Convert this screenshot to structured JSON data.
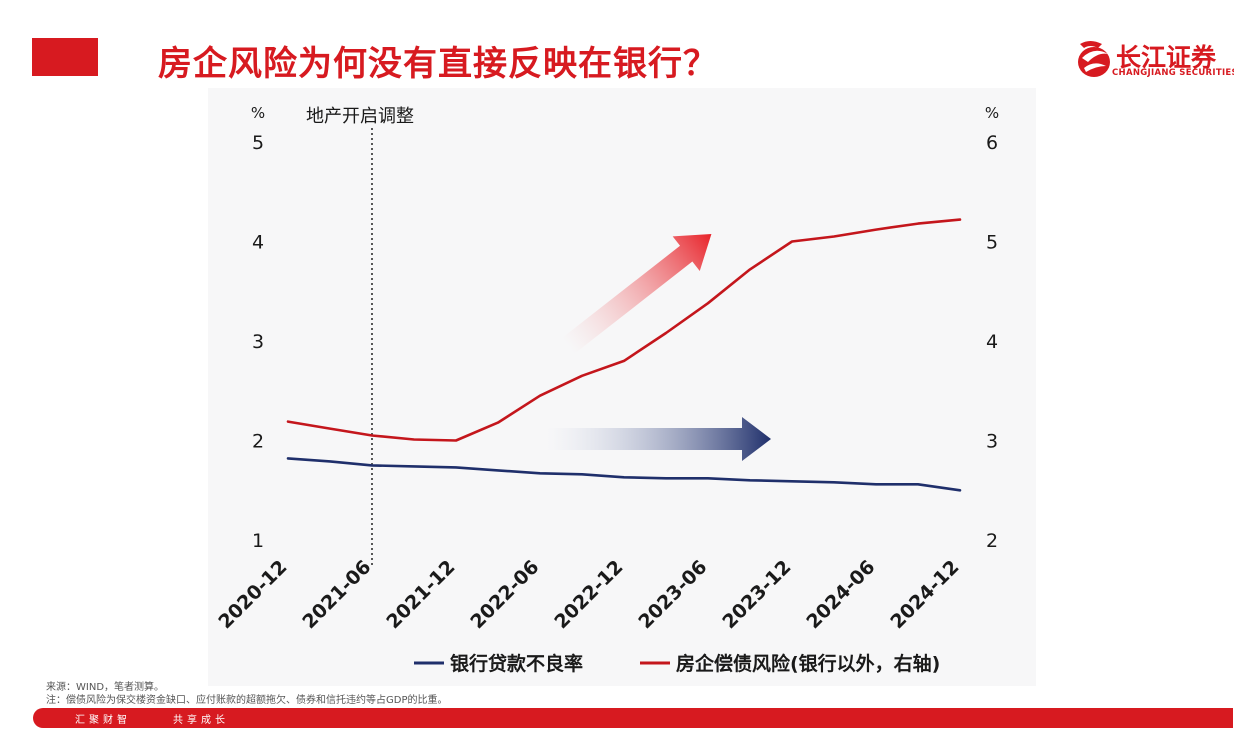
{
  "slide": {
    "title": "房企风险为何没有直接反映在银行？",
    "logo": {
      "name": "长江证券",
      "english": "CHANGJIANG SECURITIES"
    },
    "source_lines": [
      "来源：WIND，笔者测算。",
      "注：偿债风险为保交楼资金缺口、应付账款的超额拖欠、债券和信托违约等占GDP的比重。"
    ],
    "slogan": [
      "汇聚财智",
      "共享成长"
    ],
    "colors": {
      "brand_red": "#d71a20",
      "navy": "#1f2f6b"
    }
  },
  "chart_data": {
    "type": "line",
    "x_ticks": [
      "2020-12",
      "2021-06",
      "2021-12",
      "2022-06",
      "2022-12",
      "2023-06",
      "2023-12",
      "2024-06",
      "2024-12"
    ],
    "left_axis": {
      "unit": "%",
      "ticks": [
        1,
        2,
        3,
        4,
        5
      ],
      "range": [
        1,
        5
      ]
    },
    "right_axis": {
      "unit": "%",
      "ticks": [
        2,
        3,
        4,
        5,
        6
      ],
      "range": [
        2,
        6
      ]
    },
    "annotation": {
      "label": "地产开启调整",
      "x": "2021-06"
    },
    "series": [
      {
        "name": "银行贷款不良率",
        "axis": "left",
        "color": "#1f2f6b",
        "points": [
          [
            "2020-12",
            1.82
          ],
          [
            "2021-03",
            1.79
          ],
          [
            "2021-06",
            1.75
          ],
          [
            "2021-09",
            1.74
          ],
          [
            "2021-12",
            1.73
          ],
          [
            "2022-03",
            1.7
          ],
          [
            "2022-06",
            1.67
          ],
          [
            "2022-09",
            1.66
          ],
          [
            "2022-12",
            1.63
          ],
          [
            "2023-03",
            1.62
          ],
          [
            "2023-06",
            1.62
          ],
          [
            "2023-09",
            1.6
          ],
          [
            "2023-12",
            1.59
          ],
          [
            "2024-03",
            1.58
          ],
          [
            "2024-06",
            1.56
          ],
          [
            "2024-09",
            1.56
          ],
          [
            "2024-12",
            1.5
          ]
        ]
      },
      {
        "name": "房企偿债风险(银行以外，右轴)",
        "axis": "right",
        "color": "#c4161c",
        "points": [
          [
            "2020-12",
            3.19
          ],
          [
            "2021-03",
            3.12
          ],
          [
            "2021-06",
            3.05
          ],
          [
            "2021-09",
            3.01
          ],
          [
            "2021-12",
            3.0
          ],
          [
            "2022-03",
            3.18
          ],
          [
            "2022-06",
            3.45
          ],
          [
            "2022-09",
            3.65
          ],
          [
            "2022-12",
            3.8
          ],
          [
            "2023-03",
            4.08
          ],
          [
            "2023-06",
            4.38
          ],
          [
            "2023-09",
            4.72
          ],
          [
            "2023-12",
            5.0
          ],
          [
            "2024-03",
            5.05
          ],
          [
            "2024-06",
            5.12
          ],
          [
            "2024-09",
            5.18
          ],
          [
            "2024-12",
            5.22
          ]
        ]
      }
    ],
    "legend_position": "bottom",
    "grid": false
  }
}
